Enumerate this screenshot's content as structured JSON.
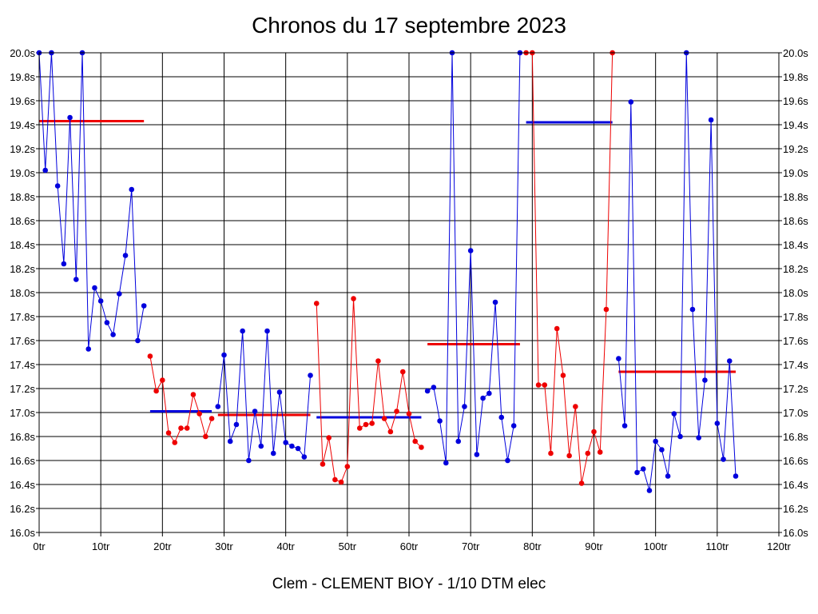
{
  "chart_data": {
    "type": "line",
    "title": "Chronos du 17 septembre 2023",
    "caption": "Clem - CLEMENT BIOY - 1/10 DTM elec",
    "xlabel": "",
    "ylabel": "",
    "xlim": [
      0,
      120
    ],
    "ylim": [
      16.0,
      20.0
    ],
    "grid": true,
    "x_ticks": [
      {
        "value": 0,
        "label": "0tr"
      },
      {
        "value": 10,
        "label": "10tr"
      },
      {
        "value": 20,
        "label": "20tr"
      },
      {
        "value": 30,
        "label": "30tr"
      },
      {
        "value": 40,
        "label": "40tr"
      },
      {
        "value": 50,
        "label": "50tr"
      },
      {
        "value": 60,
        "label": "60tr"
      },
      {
        "value": 70,
        "label": "70tr"
      },
      {
        "value": 80,
        "label": "80tr"
      },
      {
        "value": 90,
        "label": "90tr"
      },
      {
        "value": 100,
        "label": "100tr"
      },
      {
        "value": 110,
        "label": "110tr"
      },
      {
        "value": 120,
        "label": "120tr"
      }
    ],
    "y_ticks": [
      {
        "value": 20.0,
        "label": "20.0s"
      },
      {
        "value": 19.8,
        "label": "19.8s"
      },
      {
        "value": 19.6,
        "label": "19.6s"
      },
      {
        "value": 19.4,
        "label": "19.4s"
      },
      {
        "value": 19.2,
        "label": "19.2s"
      },
      {
        "value": 19.0,
        "label": "19.0s"
      },
      {
        "value": 18.8,
        "label": "18.8s"
      },
      {
        "value": 18.6,
        "label": "18.6s"
      },
      {
        "value": 18.4,
        "label": "18.4s"
      },
      {
        "value": 18.2,
        "label": "18.2s"
      },
      {
        "value": 18.0,
        "label": "18.0s"
      },
      {
        "value": 17.8,
        "label": "17.8s"
      },
      {
        "value": 17.6,
        "label": "17.6s"
      },
      {
        "value": 17.4,
        "label": "17.4s"
      },
      {
        "value": 17.2,
        "label": "17.2s"
      },
      {
        "value": 17.0,
        "label": "17.0s"
      },
      {
        "value": 16.8,
        "label": "16.8s"
      },
      {
        "value": 16.6,
        "label": "16.6s"
      },
      {
        "value": 16.4,
        "label": "16.4s"
      },
      {
        "value": 16.2,
        "label": "16.2s"
      },
      {
        "value": 16.0,
        "label": "16.0s"
      }
    ],
    "series": [
      {
        "color": "#0000dd",
        "points": [
          [
            0,
            20.0
          ],
          [
            1,
            19.02
          ],
          [
            2,
            20.0
          ],
          [
            3,
            18.89
          ],
          [
            4,
            18.24
          ],
          [
            5,
            19.46
          ],
          [
            6,
            18.11
          ],
          [
            7,
            20.0
          ],
          [
            8,
            17.53
          ],
          [
            9,
            18.04
          ],
          [
            10,
            17.93
          ],
          [
            11,
            17.75
          ],
          [
            12,
            17.65
          ],
          [
            13,
            17.99
          ],
          [
            14,
            18.31
          ],
          [
            15,
            18.86
          ],
          [
            16,
            17.6
          ],
          [
            17,
            17.89
          ]
        ]
      },
      {
        "color": "#ee0000",
        "points": [
          [
            18,
            17.47
          ],
          [
            19,
            17.18
          ],
          [
            20,
            17.27
          ],
          [
            21,
            16.83
          ],
          [
            22,
            16.75
          ],
          [
            23,
            16.87
          ],
          [
            24,
            16.87
          ],
          [
            25,
            17.15
          ],
          [
            26,
            16.99
          ],
          [
            27,
            16.8
          ],
          [
            28,
            16.95
          ]
        ]
      },
      {
        "color": "#0000dd",
        "points": [
          [
            29,
            17.05
          ],
          [
            30,
            17.48
          ],
          [
            31,
            16.76
          ],
          [
            32,
            16.9
          ],
          [
            33,
            17.68
          ],
          [
            34,
            16.6
          ],
          [
            35,
            17.01
          ],
          [
            36,
            16.72
          ],
          [
            37,
            17.68
          ],
          [
            38,
            16.66
          ],
          [
            39,
            17.17
          ],
          [
            40,
            16.75
          ],
          [
            41,
            16.72
          ],
          [
            42,
            16.7
          ],
          [
            43,
            16.63
          ],
          [
            44,
            17.31
          ]
        ]
      },
      {
        "color": "#ee0000",
        "points": [
          [
            45,
            17.91
          ],
          [
            46,
            16.57
          ],
          [
            47,
            16.79
          ],
          [
            48,
            16.44
          ],
          [
            49,
            16.42
          ],
          [
            50,
            16.55
          ],
          [
            51,
            17.95
          ],
          [
            52,
            16.87
          ],
          [
            53,
            16.9
          ],
          [
            54,
            16.91
          ],
          [
            55,
            17.43
          ],
          [
            56,
            16.95
          ],
          [
            57,
            16.84
          ],
          [
            58,
            17.01
          ],
          [
            59,
            17.34
          ],
          [
            60,
            16.99
          ],
          [
            61,
            16.76
          ],
          [
            62,
            16.71
          ]
        ]
      },
      {
        "color": "#0000dd",
        "points": [
          [
            63,
            17.18
          ],
          [
            64,
            17.21
          ],
          [
            65,
            16.93
          ],
          [
            66,
            16.58
          ],
          [
            67,
            20.0
          ],
          [
            68,
            16.76
          ],
          [
            69,
            17.05
          ],
          [
            70,
            18.35
          ],
          [
            71,
            16.65
          ],
          [
            72,
            17.12
          ],
          [
            73,
            17.16
          ],
          [
            74,
            17.92
          ],
          [
            75,
            16.96
          ],
          [
            76,
            16.6
          ],
          [
            77,
            16.89
          ],
          [
            78,
            20.0
          ]
        ]
      },
      {
        "color": "#ee0000",
        "points": [
          [
            79,
            20.0
          ],
          [
            80,
            20.0
          ],
          [
            81,
            17.23
          ],
          [
            82,
            17.23
          ],
          [
            83,
            16.66
          ],
          [
            84,
            17.7
          ],
          [
            85,
            17.31
          ],
          [
            86,
            16.64
          ],
          [
            87,
            17.05
          ],
          [
            88,
            16.41
          ],
          [
            89,
            16.66
          ],
          [
            90,
            16.84
          ],
          [
            91,
            16.67
          ],
          [
            92,
            17.86
          ],
          [
            93,
            20.0
          ]
        ]
      },
      {
        "color": "#0000dd",
        "points": [
          [
            94,
            17.45
          ],
          [
            95,
            16.89
          ],
          [
            96,
            19.59
          ],
          [
            97,
            16.5
          ],
          [
            98,
            16.53
          ],
          [
            99,
            16.35
          ],
          [
            100,
            16.76
          ],
          [
            101,
            16.69
          ],
          [
            102,
            16.47
          ],
          [
            103,
            16.99
          ],
          [
            104,
            16.8
          ],
          [
            105,
            20.0
          ],
          [
            106,
            17.86
          ],
          [
            107,
            16.79
          ],
          [
            108,
            17.27
          ],
          [
            109,
            19.44
          ],
          [
            110,
            16.91
          ],
          [
            111,
            16.61
          ],
          [
            112,
            17.43
          ],
          [
            113,
            16.47
          ]
        ]
      }
    ],
    "averages": [
      {
        "color": "#ee0000",
        "x": [
          0,
          17
        ],
        "y": 19.43
      },
      {
        "color": "#0000dd",
        "x": [
          18,
          28
        ],
        "y": 17.01
      },
      {
        "color": "#ee0000",
        "x": [
          29,
          44
        ],
        "y": 16.98
      },
      {
        "color": "#0000dd",
        "x": [
          45,
          62
        ],
        "y": 16.96
      },
      {
        "color": "#ee0000",
        "x": [
          63,
          78
        ],
        "y": 17.57
      },
      {
        "color": "#0000dd",
        "x": [
          79,
          93
        ],
        "y": 19.42
      },
      {
        "color": "#ee0000",
        "x": [
          94,
          113
        ],
        "y": 17.34
      }
    ]
  }
}
